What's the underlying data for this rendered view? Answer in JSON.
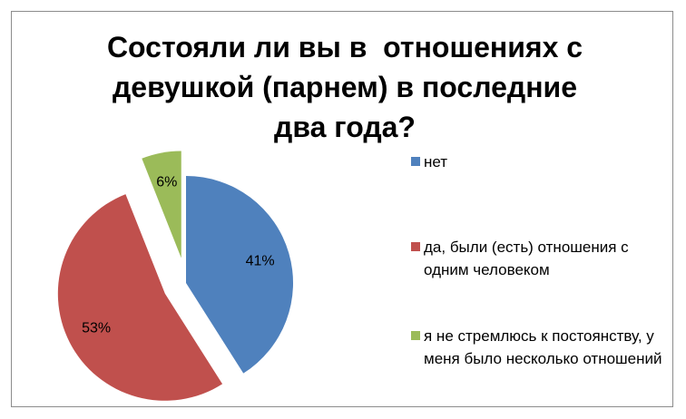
{
  "chart_data": {
    "type": "pie",
    "title": "Состояли ли вы в  отношениях с девушкой (парнем) в последние два года?",
    "categories": [
      "нет",
      "да, были (есть) отношения с одним человеком",
      "я не стремлюсь к постоянству, у меня было несколько отношений"
    ],
    "values": [
      41,
      53,
      6
    ],
    "value_labels": [
      "41%",
      "53%",
      "6%"
    ],
    "colors": [
      "#4f81bd",
      "#c0504d",
      "#9bbb59"
    ],
    "legend": "right"
  }
}
